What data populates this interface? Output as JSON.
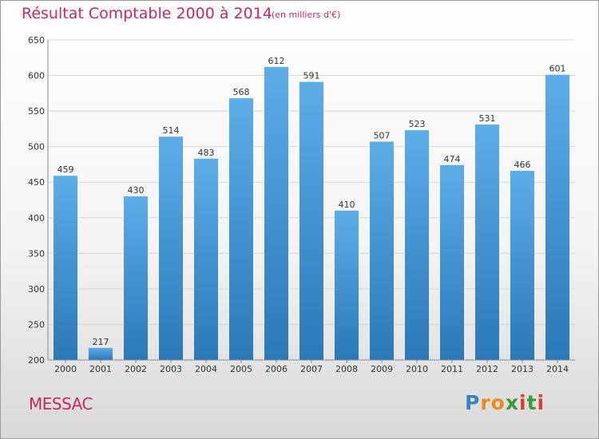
{
  "header": {
    "title": "Résultat Comptable 2000 à 2014",
    "subtitle": "(en milliers d'€)"
  },
  "footer": {
    "location": "MESSAC",
    "logo_text": "Proxiti",
    "logo_colors": [
      "#3a7fc4",
      "#f08a1c",
      "#f08a1c",
      "#3a9a3a",
      "#e03a2a",
      "#3a9a3a",
      "#e03a2a"
    ]
  },
  "colors": {
    "title": "#c42a63",
    "bar_top": "#5dade9",
    "bar_bottom": "#2a78b8",
    "grid": "#d6d6d6",
    "axis_text": "#333333"
  },
  "chart_data": {
    "type": "bar",
    "title": "Résultat Comptable 2000 à 2014",
    "subtitle": "(en milliers d'€)",
    "categories": [
      "2000",
      "2001",
      "2002",
      "2003",
      "2004",
      "2005",
      "2006",
      "2007",
      "2008",
      "2009",
      "2010",
      "2011",
      "2012",
      "2013",
      "2014"
    ],
    "values": [
      459,
      217,
      430,
      514,
      483,
      568,
      612,
      591,
      410,
      507,
      523,
      474,
      531,
      466,
      601
    ],
    "ylim": [
      200,
      650
    ],
    "yticks": [
      200,
      250,
      300,
      350,
      400,
      450,
      500,
      550,
      600,
      650
    ],
    "xlabel": "",
    "ylabel": "",
    "grid": true
  }
}
